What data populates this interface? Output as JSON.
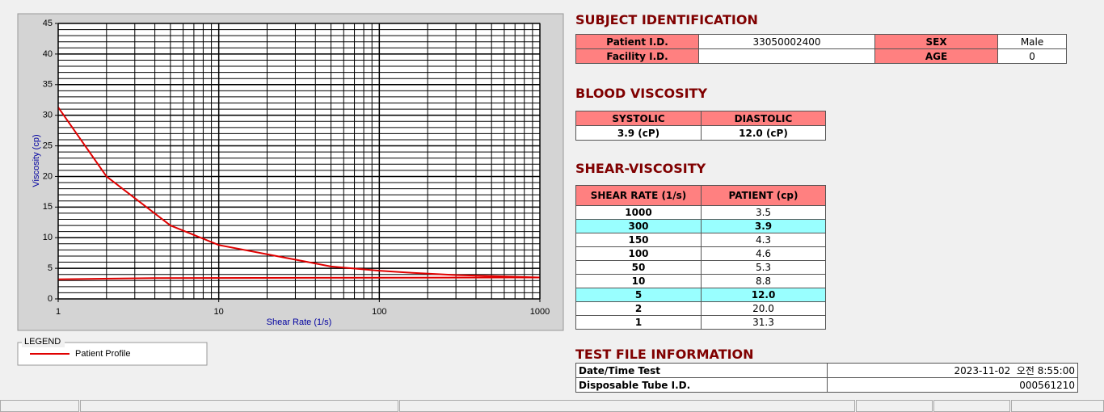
{
  "chart_data": {
    "type": "line",
    "x_label": "Shear Rate (1/s)",
    "y_label": "Viscosity (cp)",
    "xlim": [
      1,
      1000
    ],
    "xticks": [
      1,
      10,
      100,
      1000
    ],
    "x_log": true,
    "ylim": [
      0,
      45
    ],
    "yticks": [
      0,
      5,
      10,
      15,
      20,
      25,
      30,
      35,
      40,
      45
    ],
    "grid": true,
    "minor_grid": true,
    "legend_title": "LEGEND",
    "legend": "bottom-left",
    "series": [
      {
        "name": "Patient Profile",
        "color": "#e00000",
        "x": [
          1,
          2,
          5,
          10,
          50,
          100,
          150,
          300,
          1000
        ],
        "values": [
          31.3,
          20.0,
          12.0,
          8.8,
          5.3,
          4.6,
          4.3,
          3.9,
          3.5
        ]
      },
      {
        "color": "#e00000",
        "x": [
          1,
          4,
          1000
        ],
        "values": [
          3.2,
          3.4,
          3.5
        ]
      }
    ]
  },
  "subject_identification": {
    "title": "SUBJECT IDENTIFICATION",
    "patient_id_label": "Patient I.D.",
    "patient_id": "33050002400",
    "sex_label": "SEX",
    "sex": "Male",
    "facility_id_label": "Facility I.D.",
    "age_label": "AGE",
    "age": 0
  },
  "blood_viscosity": {
    "title": "BLOOD VISCOSITY",
    "systolic_label": "SYSTOLIC",
    "diastolic_label": "DIASTOLIC",
    "systolic": "3.9 (cP)",
    "diastolic": "12.0 (cP)"
  },
  "shear_viscosity": {
    "title": "SHEAR-VISCOSITY",
    "headers": [
      "SHEAR RATE (1/s)",
      "PATIENT (cp)"
    ],
    "rows": [
      {
        "cells": [
          "1000",
          "3.5"
        ],
        "highlight": false
      },
      {
        "cells": [
          "300",
          "3.9"
        ],
        "highlight": true
      },
      {
        "cells": [
          "150",
          "4.3"
        ],
        "highlight": false
      },
      {
        "cells": [
          "100",
          "4.6"
        ],
        "highlight": false
      },
      {
        "cells": [
          "50",
          "5.3"
        ],
        "highlight": false
      },
      {
        "cells": [
          "10",
          "8.8"
        ],
        "highlight": false
      },
      {
        "cells": [
          "5",
          "12.0"
        ],
        "highlight": true
      },
      {
        "cells": [
          "2",
          "20.0"
        ],
        "highlight": false
      },
      {
        "cells": [
          "1",
          "31.3"
        ],
        "highlight": false
      }
    ]
  },
  "test_file_information": {
    "title": "TEST FILE INFORMATION",
    "date_label": "Date/Time Test",
    "date": "2023-11-02  오전 8:55:00",
    "tube_label": "Disposable Tube I.D.",
    "tube": "000561210"
  }
}
